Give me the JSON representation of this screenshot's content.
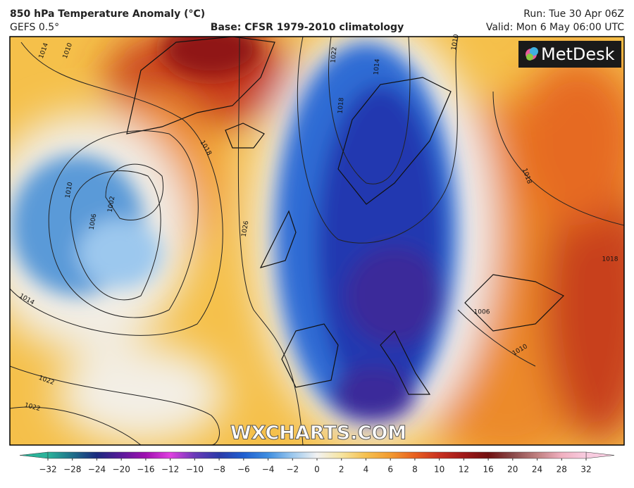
{
  "header": {
    "title": "850 hPa Temperature Anomaly (°C)",
    "model": "GEFS 0.5°",
    "base": "Base: CFSR 1979-2010 climatology",
    "run": "Run: Tue 30 Apr 06Z",
    "valid": "Valid: Mon 6 May 06:00 UTC"
  },
  "logo": "MetDesk",
  "watermark": "WXCHARTS.COM",
  "contour_labels": [
    "1014",
    "1010",
    "1022",
    "1014",
    "1010",
    "1018",
    "1018",
    "1010",
    "1006",
    "1002",
    "1026",
    "1014",
    "1022",
    "1022",
    "1018",
    "1018",
    "1006",
    "1010"
  ],
  "colorbar": {
    "ticks": [
      "−32",
      "−28",
      "−24",
      "−20",
      "−16",
      "−12",
      "−10",
      "−8",
      "−6",
      "−4",
      "−2",
      "0",
      "2",
      "4",
      "6",
      "8",
      "10",
      "12",
      "16",
      "20",
      "24",
      "28",
      "32"
    ],
    "colors": [
      "#2bb39a",
      "#1f6f8a",
      "#1a2a7e",
      "#5a1a9a",
      "#a010b0",
      "#e040e0",
      "#6a3ab8",
      "#2b3aa8",
      "#1f5fd0",
      "#3f8ee0",
      "#9cc8ee",
      "#f2f2f2",
      "#f6e4a0",
      "#f5c050",
      "#f29a30",
      "#e86020",
      "#c83020",
      "#a01818",
      "#701010",
      "#8a4a4a",
      "#c08080",
      "#f0b0c0",
      "#f8cce0"
    ]
  }
}
